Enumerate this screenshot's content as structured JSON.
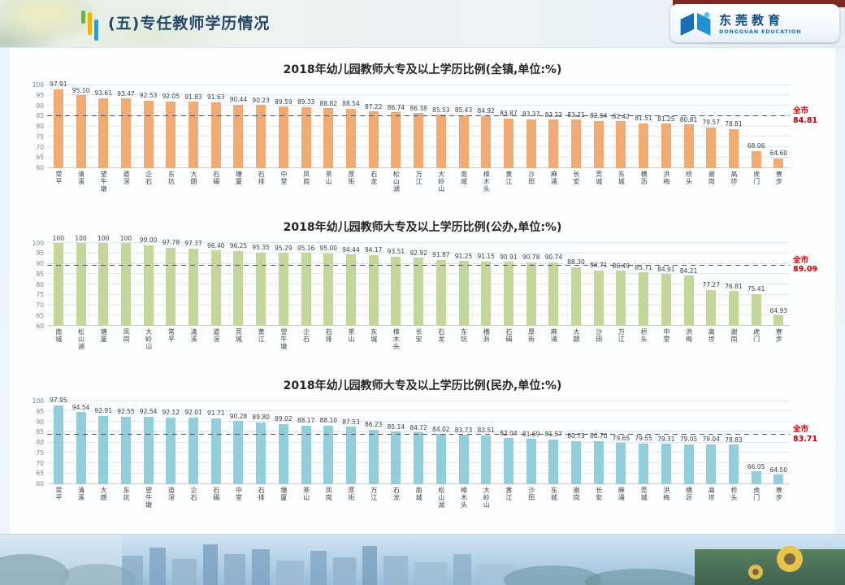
{
  "header": {
    "title": "(五)专任教师学历情况",
    "logo": {
      "name_cn": "东莞教育",
      "name_en": "DONGGUAN EDUCATION"
    }
  },
  "chart_data": [
    {
      "type": "bar",
      "title": "2018年幼儿园教师大专及以上学历比例(全镇,单位:%)",
      "xlabel": "",
      "ylabel": "",
      "ylim": [
        60,
        100
      ],
      "yticks": [
        100,
        95,
        90,
        85,
        80,
        75,
        70,
        65,
        60
      ],
      "grid": true,
      "bar_color": "#f2aa73",
      "categories": [
        "常平",
        "清溪",
        "望牛墩",
        "道滘",
        "企石",
        "东坑",
        "大朗",
        "石碣",
        "塘厦",
        "石排",
        "中堂",
        "凤岗",
        "茶山",
        "厚街",
        "石龙",
        "松山湖",
        "万江",
        "大岭山",
        "南城",
        "樟木头",
        "黄江",
        "沙田",
        "麻涌",
        "长安",
        "莞城",
        "东城",
        "横沥",
        "洪梅",
        "桥头",
        "谢岗",
        "高埗",
        "虎门",
        "寮步"
      ],
      "values": [
        "97.91",
        "95.10",
        "93.61",
        "93.47",
        "92.53",
        "92.05",
        "91.83",
        "91.63",
        "90.44",
        "90.23",
        "89.59",
        "89.33",
        "88.82",
        "88.54",
        "87.22",
        "86.74",
        "86.38",
        "85.53",
        "85.43",
        "84.92",
        "83.87",
        "83.37",
        "83.23",
        "83.21",
        "82.64",
        "82.42",
        "81.51",
        "81.25",
        "80.81",
        "79.57",
        "78.81",
        "68.06",
        "64.60"
      ],
      "average": {
        "label": "全市",
        "value": "84.81",
        "color": "#c00000"
      }
    },
    {
      "type": "bar",
      "title": "2018年幼儿园教师大专及以上学历比例(公办,单位:%)",
      "xlabel": "",
      "ylabel": "",
      "ylim": [
        60,
        100
      ],
      "yticks": [
        100,
        95,
        90,
        85,
        80,
        75,
        70,
        65,
        60
      ],
      "grid": true,
      "bar_color": "#c4d79b",
      "categories": [
        "南城",
        "松山湖",
        "塘厦",
        "凤岗",
        "大岭山",
        "常平",
        "清溪",
        "道滘",
        "莞城",
        "黄江",
        "望牛墩",
        "企石",
        "石排",
        "茶山",
        "东城",
        "樟木头",
        "长安",
        "石龙",
        "东坑",
        "横沥",
        "石碣",
        "厚街",
        "麻涌",
        "大朗",
        "沙田",
        "万江",
        "桥头",
        "中堂",
        "洪梅",
        "高埗",
        "谢岗",
        "虎门",
        "寮步"
      ],
      "values": [
        "100",
        "100",
        "100",
        "100",
        "99.00",
        "97.78",
        "97.37",
        "96.40",
        "96.25",
        "95.35",
        "95.29",
        "95.16",
        "95.00",
        "94.44",
        "94.17",
        "93.51",
        "92.92",
        "91.87",
        "91.25",
        "91.15",
        "90.91",
        "90.78",
        "90.74",
        "88.30",
        "86.71",
        "86.49",
        "85.71",
        "84.91",
        "84.21",
        "77.27",
        "76.81",
        "75.41",
        "64.93"
      ],
      "average": {
        "label": "全市",
        "value": "89.09",
        "color": "#c00000"
      }
    },
    {
      "type": "bar",
      "title": "2018年幼儿园教师大专及以上学历比例(民办,单位:%)",
      "xlabel": "",
      "ylabel": "",
      "ylim": [
        60,
        100
      ],
      "yticks": [
        100,
        95,
        90,
        85,
        80,
        75,
        70,
        65,
        60
      ],
      "grid": true,
      "bar_color": "#92cddc",
      "categories": [
        "常平",
        "清溪",
        "大朗",
        "东坑",
        "望牛墩",
        "道滘",
        "企石",
        "石碣",
        "中堂",
        "石排",
        "塘厦",
        "茶山",
        "凤岗",
        "厚街",
        "万江",
        "石龙",
        "南城",
        "松山湖",
        "樟木头",
        "大岭山",
        "黄江",
        "沙田",
        "东城",
        "谢岗",
        "长安",
        "麻涌",
        "莞城",
        "洪梅",
        "横沥",
        "高埗",
        "桥头",
        "虎门",
        "寮步"
      ],
      "values": [
        "97.95",
        "94.54",
        "92.91",
        "92.55",
        "92.54",
        "92.12",
        "92.01",
        "91.71",
        "90.28",
        "89.80",
        "89.02",
        "88.17",
        "88.10",
        "87.53",
        "86.23",
        "85.14",
        "84.72",
        "84.02",
        "83.73",
        "83.51",
        "82.04",
        "81.69",
        "81.57",
        "80.75",
        "80.70",
        "79.65",
        "79.55",
        "79.31",
        "79.05",
        "79.04",
        "78.83",
        "66.05",
        "64.50"
      ],
      "average": {
        "label": "全市",
        "value": "83.71",
        "color": "#c00000"
      }
    }
  ]
}
